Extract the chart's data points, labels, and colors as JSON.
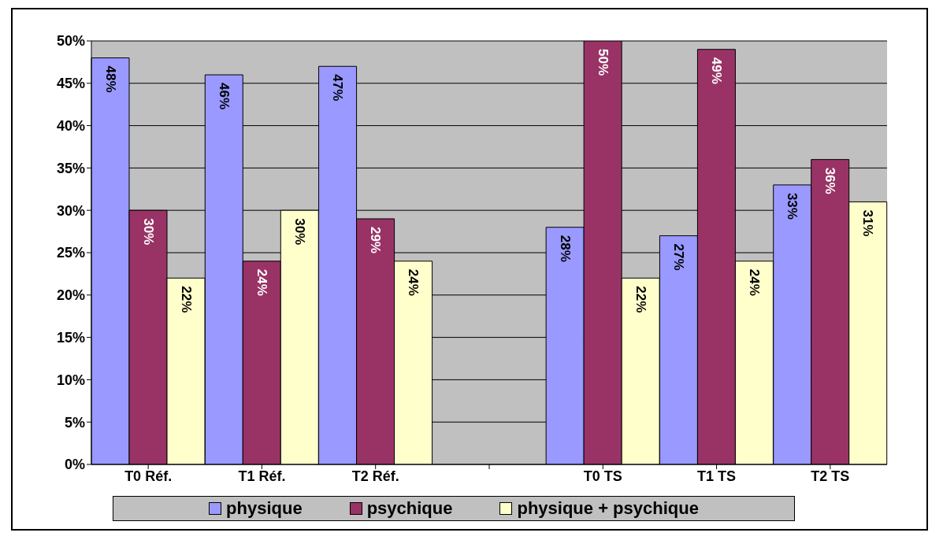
{
  "chart_data": {
    "type": "bar",
    "categories": [
      "T0 Réf.",
      "T1 Réf.",
      "T2 Réf.",
      null,
      "T0 TS",
      "T1 TS",
      "T2 TS"
    ],
    "series": [
      {
        "name": "physique",
        "color": "#9999ff",
        "values": [
          48,
          46,
          47,
          null,
          28,
          27,
          33
        ],
        "value_labels": [
          "48%",
          "46%",
          "47%",
          null,
          "28%",
          "27%",
          "33%"
        ]
      },
      {
        "name": "psychique",
        "color": "#993366",
        "values": [
          30,
          24,
          29,
          null,
          50,
          49,
          36
        ],
        "value_labels": [
          "30%",
          "24%",
          "29%",
          null,
          "50%",
          "49%",
          "36%"
        ]
      },
      {
        "name": "physique + psychique",
        "color": "#ffffcc",
        "values": [
          22,
          30,
          24,
          null,
          22,
          24,
          31
        ],
        "value_labels": [
          "22%",
          "30%",
          "24%",
          null,
          "22%",
          "24%",
          "31%"
        ]
      }
    ],
    "ylim": [
      0,
      50
    ],
    "yticks": [
      {
        "value": 0,
        "label": "0%"
      },
      {
        "value": 5,
        "label": "5%"
      },
      {
        "value": 10,
        "label": "10%"
      },
      {
        "value": 15,
        "label": "15%"
      },
      {
        "value": 20,
        "label": "20%"
      },
      {
        "value": 25,
        "label": "25%"
      },
      {
        "value": 30,
        "label": "30%"
      },
      {
        "value": 35,
        "label": "35%"
      },
      {
        "value": 40,
        "label": "40%"
      },
      {
        "value": 45,
        "label": "45%"
      },
      {
        "value": 50,
        "label": "50%"
      }
    ],
    "grid": "y",
    "legend": "bottom"
  }
}
